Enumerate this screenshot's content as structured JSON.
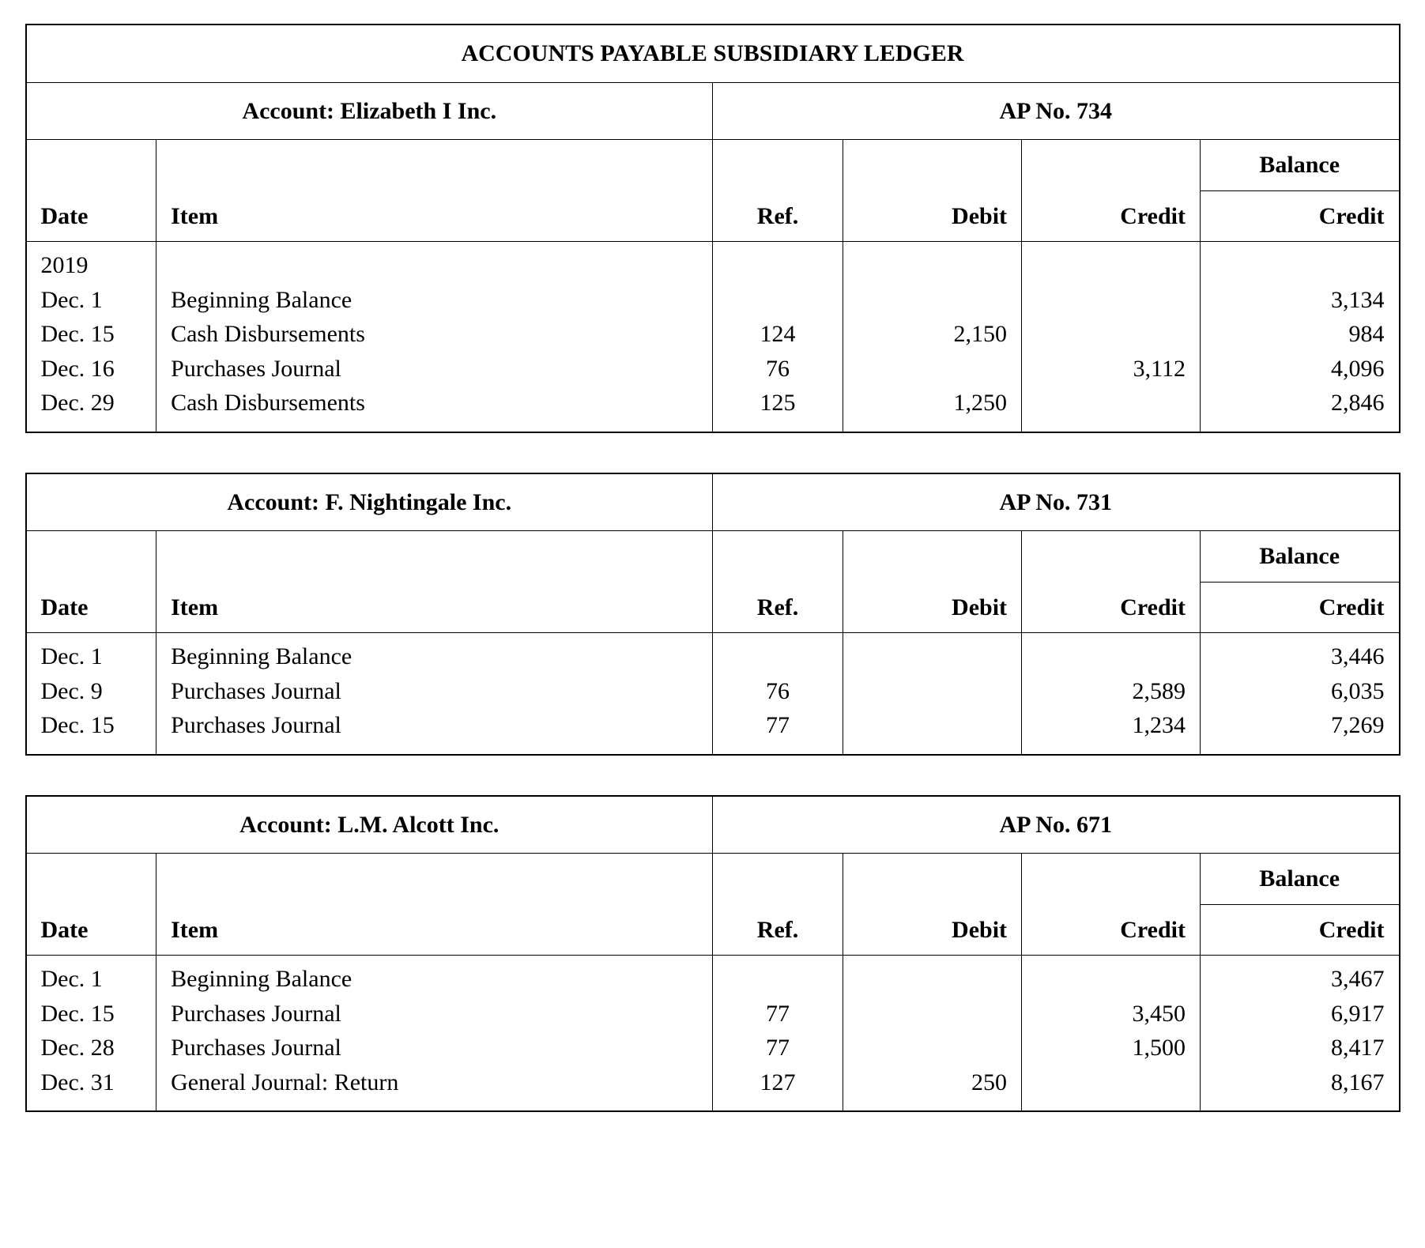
{
  "page": {
    "title": "ACCOUNTS PAYABLE SUBSIDIARY LEDGER",
    "background_color": "#ffffff",
    "text_color": "#000000",
    "border_color": "#000000",
    "font_family": "Times New Roman",
    "title_fontsize": 30,
    "cell_fontsize": 30
  },
  "column_headers": {
    "date": "Date",
    "item": "Item",
    "ref": "Ref.",
    "debit": "Debit",
    "credit": "Credit",
    "balance_group": "Balance",
    "balance_sub": "Credit"
  },
  "column_widths_pct": {
    "date": 9.5,
    "item": 40.5,
    "ref": 9.5,
    "debit": 13,
    "credit": 13,
    "balance": 14.5
  },
  "accounts": [
    {
      "account_label": "Account: Elizabeth I Inc.",
      "ap_no_label": "AP No. 734",
      "show_main_title": true,
      "year_line": "2019",
      "rows": [
        {
          "date": "Dec. 1",
          "item": "Beginning Balance",
          "ref": "",
          "debit": "",
          "credit": "",
          "balance": "3,134"
        },
        {
          "date": "Dec. 15",
          "item": "Cash Disbursements",
          "ref": "124",
          "debit": "2,150",
          "credit": "",
          "balance": "984"
        },
        {
          "date": "Dec. 16",
          "item": "Purchases Journal",
          "ref": "76",
          "debit": "",
          "credit": "3,112",
          "balance": "4,096"
        },
        {
          "date": "Dec. 29",
          "item": "Cash Disbursements",
          "ref": "125",
          "debit": "1,250",
          "credit": "",
          "balance": "2,846"
        }
      ]
    },
    {
      "account_label": "Account: F. Nightingale Inc.",
      "ap_no_label": "AP No. 731",
      "show_main_title": false,
      "year_line": "",
      "rows": [
        {
          "date": "Dec. 1",
          "item": "Beginning Balance",
          "ref": "",
          "debit": "",
          "credit": "",
          "balance": "3,446"
        },
        {
          "date": "Dec. 9",
          "item": "Purchases Journal",
          "ref": "76",
          "debit": "",
          "credit": "2,589",
          "balance": "6,035"
        },
        {
          "date": "Dec. 15",
          "item": "Purchases Journal",
          "ref": "77",
          "debit": "",
          "credit": "1,234",
          "balance": "7,269"
        }
      ]
    },
    {
      "account_label": "Account: L.M. Alcott Inc.",
      "ap_no_label": "AP No. 671",
      "show_main_title": false,
      "year_line": "",
      "rows": [
        {
          "date": "Dec. 1",
          "item": "Beginning Balance",
          "ref": "",
          "debit": "",
          "credit": "",
          "balance": "3,467"
        },
        {
          "date": "Dec. 15",
          "item": "Purchases Journal",
          "ref": "77",
          "debit": "",
          "credit": "3,450",
          "balance": "6,917"
        },
        {
          "date": "Dec. 28",
          "item": "Purchases Journal",
          "ref": "77",
          "debit": "",
          "credit": "1,500",
          "balance": "8,417"
        },
        {
          "date": "Dec. 31",
          "item": "General Journal: Return",
          "ref": "127",
          "debit": "250",
          "credit": "",
          "balance": "8,167"
        }
      ]
    }
  ]
}
